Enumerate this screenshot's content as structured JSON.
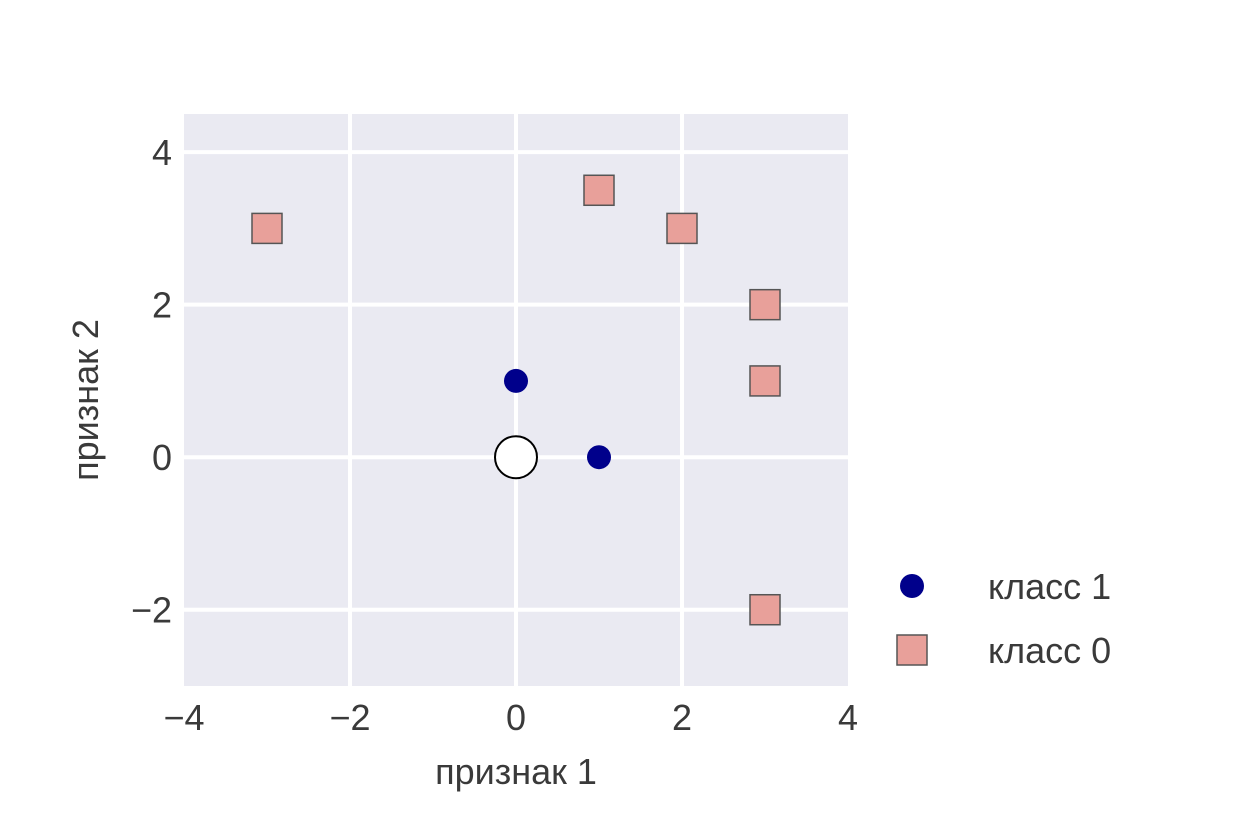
{
  "chart_data": {
    "type": "scatter",
    "title": "",
    "xlabel": "признак 1",
    "ylabel": "признак 2",
    "xlim": [
      -4,
      4
    ],
    "ylim": [
      -3,
      4.5
    ],
    "xticks": [
      -4,
      -2,
      0,
      2,
      4
    ],
    "yticks": [
      -2,
      0,
      2,
      4
    ],
    "xtick_labels": [
      "−4",
      "−2",
      "0",
      "2",
      "4"
    ],
    "ytick_labels": [
      "−2",
      "0",
      "2",
      "4"
    ],
    "grid": true,
    "legend_position": "right-bottom",
    "background_color": "#eaeaf2",
    "series": [
      {
        "name": "класс 1",
        "marker": "circle",
        "color": "#00008b",
        "points": [
          [
            0,
            1
          ],
          [
            1,
            0
          ]
        ]
      },
      {
        "name": "класс 0",
        "marker": "square",
        "color": "#e8a09a",
        "points": [
          [
            -3,
            3
          ],
          [
            1,
            3.5
          ],
          [
            2,
            3
          ],
          [
            3,
            2
          ],
          [
            3,
            1
          ],
          [
            3,
            -2
          ]
        ]
      }
    ],
    "annotations": [
      {
        "marker": "circle",
        "fill": "#ffffff",
        "edge": "#000000",
        "point": [
          0,
          0
        ]
      }
    ]
  }
}
